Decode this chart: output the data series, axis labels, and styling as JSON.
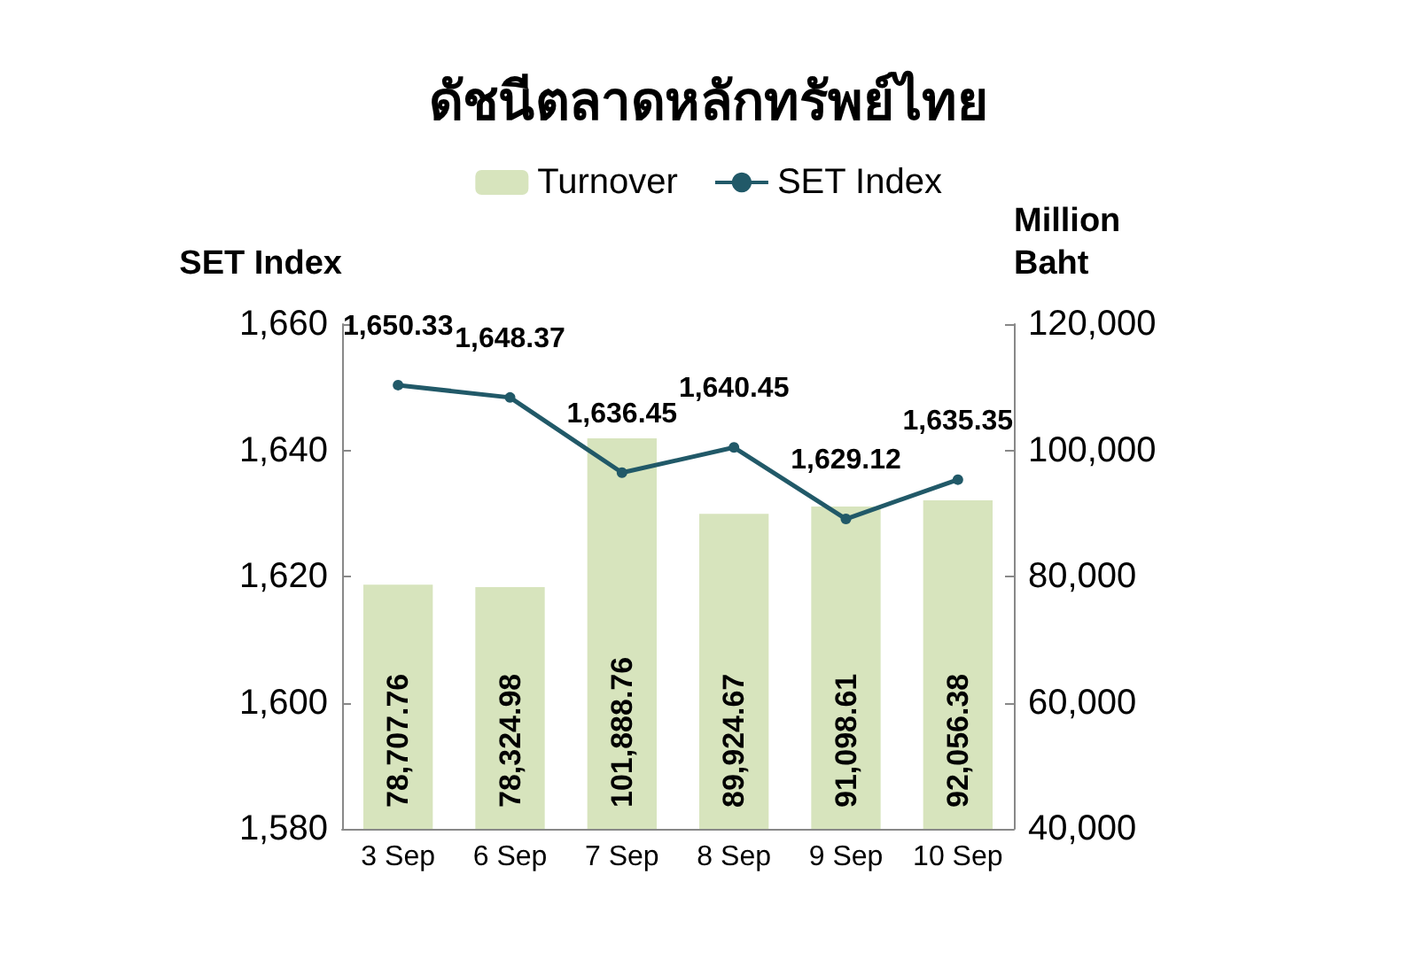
{
  "chart_data": {
    "type": "bar",
    "title": "ดัชนีตลาดหลักทรัพย์ไทย",
    "categories": [
      "3 Sep",
      "6 Sep",
      "7 Sep",
      "8 Sep",
      "9 Sep",
      "10 Sep"
    ],
    "series": [
      {
        "name": "Turnover",
        "axis": "y2",
        "color": "#d7e4bd",
        "values": [
          78707.76,
          78324.98,
          101888.76,
          89924.67,
          91098.61,
          92056.38
        ],
        "value_labels": [
          "78,707.76",
          "78,324.98",
          "101,888.76",
          "89,924.67",
          "91,098.61",
          "92,056.38"
        ]
      },
      {
        "name": "SET Index",
        "type": "line",
        "color": "#215968",
        "values": [
          1650.33,
          1648.37,
          1636.45,
          1640.45,
          1629.12,
          1635.35
        ],
        "value_labels": [
          "1,650.33",
          "1,648.37",
          "1,636.45",
          "1,640.45",
          "1,629.12",
          "1,635.35"
        ]
      }
    ],
    "ylabel": "SET Index",
    "y2label": "Million\nBaht",
    "ylim": [
      1580,
      1660
    ],
    "yticks": [
      {
        "value": 1580,
        "label": "1,580"
      },
      {
        "value": 1600,
        "label": "1,600"
      },
      {
        "value": 1620,
        "label": "1,620"
      },
      {
        "value": 1640,
        "label": "1,640"
      },
      {
        "value": 1660,
        "label": "1,660"
      }
    ],
    "y2lim": [
      40000,
      120000
    ],
    "y2ticks": [
      {
        "value": 40000,
        "label": "40,000"
      },
      {
        "value": 60000,
        "label": "60,000"
      },
      {
        "value": 80000,
        "label": "80,000"
      },
      {
        "value": 100000,
        "label": "100,000"
      },
      {
        "value": 120000,
        "label": "120,000"
      }
    ],
    "legend": "top",
    "marker": "circle"
  }
}
